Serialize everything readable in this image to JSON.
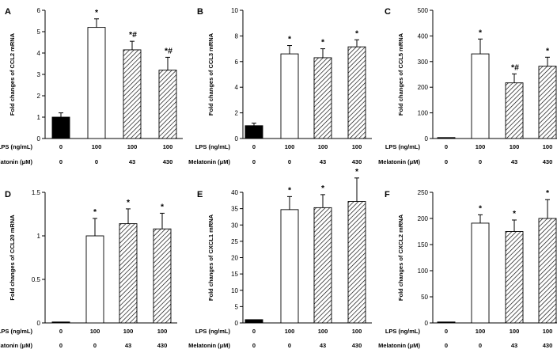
{
  "figure": {
    "conditions": {
      "lps_label": "LPS (ng/mL)",
      "melatonin_label": "Melatonin (μM)",
      "lps_values": [
        "0",
        "100",
        "100",
        "100"
      ],
      "melatonin_values": [
        "0",
        "0",
        "43",
        "430"
      ]
    }
  },
  "chart_data": [
    {
      "panel": "A",
      "type": "bar",
      "title": "",
      "ylabel": "Fold changes of CCL2 mRNA",
      "xlabel": "",
      "ylim": [
        0,
        6
      ],
      "yticks": [
        0,
        1,
        2,
        3,
        4,
        5,
        6
      ],
      "categories": [
        "0/0",
        "100/0",
        "100/43",
        "100/430"
      ],
      "values": [
        1.0,
        5.2,
        4.15,
        3.2
      ],
      "errors": [
        0.2,
        0.4,
        0.4,
        0.6
      ],
      "styles": [
        "black",
        "white",
        "hatched",
        "hatched"
      ],
      "annotations": [
        "",
        "*",
        "*#",
        "*#"
      ]
    },
    {
      "panel": "B",
      "type": "bar",
      "title": "",
      "ylabel": "Fold changes of CCL3 mRNA",
      "xlabel": "",
      "ylim": [
        0,
        10
      ],
      "yticks": [
        0,
        2,
        4,
        6,
        8,
        10
      ],
      "categories": [
        "0/0",
        "100/0",
        "100/43",
        "100/430"
      ],
      "values": [
        1.0,
        6.6,
        6.3,
        7.15
      ],
      "errors": [
        0.2,
        0.65,
        0.7,
        0.55
      ],
      "styles": [
        "black",
        "white",
        "hatched",
        "hatched"
      ],
      "annotations": [
        "",
        "*",
        "*",
        "*"
      ]
    },
    {
      "panel": "C",
      "type": "bar",
      "title": "",
      "ylabel": "Fold changes of CCL5 mRNA",
      "xlabel": "",
      "ylim": [
        0,
        500
      ],
      "yticks": [
        0,
        100,
        200,
        300,
        400,
        500
      ],
      "categories": [
        "0/0",
        "100/0",
        "100/43",
        "100/430"
      ],
      "values": [
        1,
        330,
        217,
        282
      ],
      "errors": [
        0,
        58,
        35,
        35
      ],
      "styles": [
        "black",
        "white",
        "hatched",
        "hatched"
      ],
      "annotations": [
        "",
        "*",
        "*#",
        "*"
      ]
    },
    {
      "panel": "D",
      "type": "bar",
      "title": "",
      "ylabel": "Fold changes of CCL20 mRNA",
      "xlabel": "",
      "ylim": [
        0,
        1.5
      ],
      "yticks": [
        0,
        0.5,
        1,
        1.5
      ],
      "ytick_labels": [
        "0",
        "0.5",
        "1",
        "1.5"
      ],
      "categories": [
        "0/0",
        "100/0",
        "100/43",
        "100/430"
      ],
      "values": [
        0.0,
        1.0,
        1.14,
        1.08
      ],
      "errors": [
        0,
        0.2,
        0.17,
        0.18
      ],
      "styles": [
        "black",
        "white",
        "hatched",
        "hatched"
      ],
      "annotations": [
        "",
        "*",
        "*",
        "*"
      ]
    },
    {
      "panel": "E",
      "type": "bar",
      "title": "",
      "ylabel": "Fold changes of CXCL1 mRNA",
      "xlabel": "",
      "ylim": [
        0,
        40
      ],
      "yticks": [
        0,
        5,
        10,
        15,
        20,
        25,
        30,
        35,
        40
      ],
      "categories": [
        "0/0",
        "100/0",
        "100/43",
        "100/430"
      ],
      "values": [
        1.0,
        34.7,
        35.3,
        37.2
      ],
      "errors": [
        0,
        4.0,
        4.0,
        7.2
      ],
      "styles": [
        "black",
        "white",
        "hatched",
        "hatched"
      ],
      "annotations": [
        "",
        "*",
        "*",
        "*"
      ]
    },
    {
      "panel": "F",
      "type": "bar",
      "title": "",
      "ylabel": "Fold changes of CXCL2 mRNA",
      "xlabel": "",
      "ylim": [
        0,
        250
      ],
      "yticks": [
        0,
        50,
        100,
        150,
        200,
        250
      ],
      "categories": [
        "0/0",
        "100/0",
        "100/43",
        "100/430"
      ],
      "values": [
        1,
        191,
        175,
        200
      ],
      "errors": [
        0,
        16,
        22,
        36
      ],
      "styles": [
        "black",
        "white",
        "hatched",
        "hatched"
      ],
      "annotations": [
        "",
        "*",
        "*",
        "*"
      ]
    }
  ]
}
